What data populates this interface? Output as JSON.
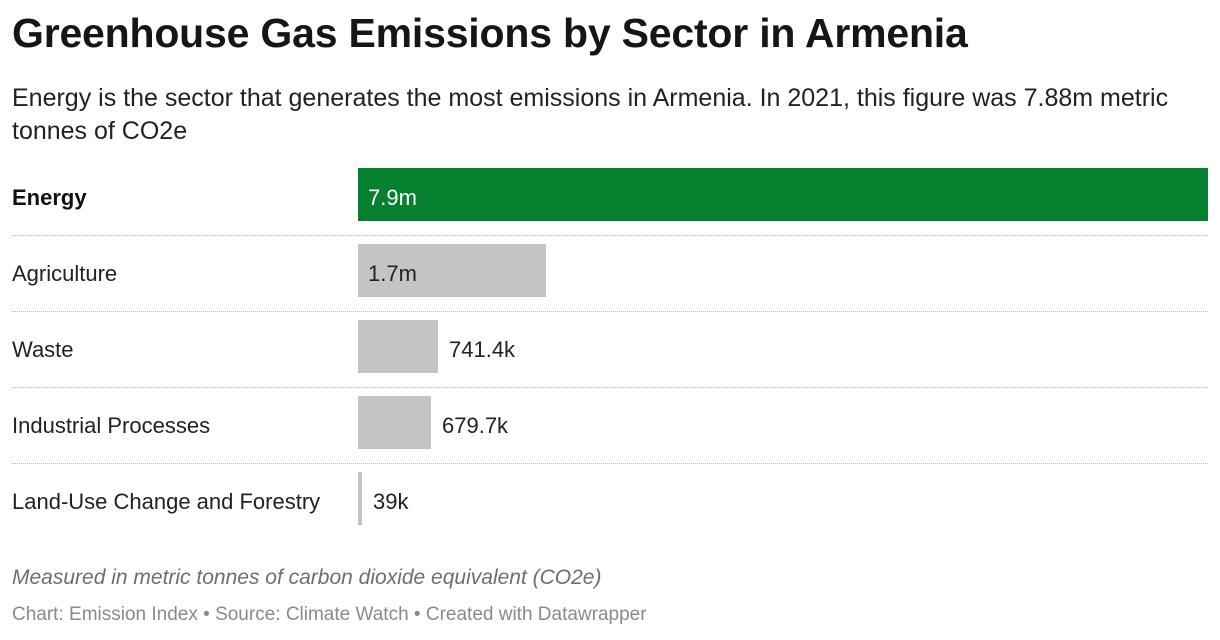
{
  "header": {
    "title": "Greenhouse Gas Emissions by Sector in Armenia",
    "subtitle": "Energy is the sector that generates the most emissions in Armenia. In 2021, this figure was 7.88m metric tonnes of CO2e"
  },
  "chart_data": {
    "type": "bar",
    "orientation": "horizontal",
    "categories": [
      "Energy",
      "Agriculture",
      "Waste",
      "Industrial Processes",
      "Land-Use Change and Forestry"
    ],
    "values": [
      7880000,
      1740000,
      741400,
      679700,
      39000
    ],
    "value_labels": [
      "7.9m",
      "1.7m",
      "741.4k",
      "679.7k",
      "39k"
    ],
    "highlight": "Energy",
    "colors": {
      "highlight": "#05802e",
      "default": "#c4c4c4"
    },
    "xlim": [
      0,
      7880000
    ],
    "grid": false,
    "legend": "none"
  },
  "notes": "Measured in metric tonnes of carbon dioxide equivalent (CO2e)",
  "footer": {
    "text": "Chart: Emission Index • Source: Climate Watch • Created with Datawrapper"
  }
}
